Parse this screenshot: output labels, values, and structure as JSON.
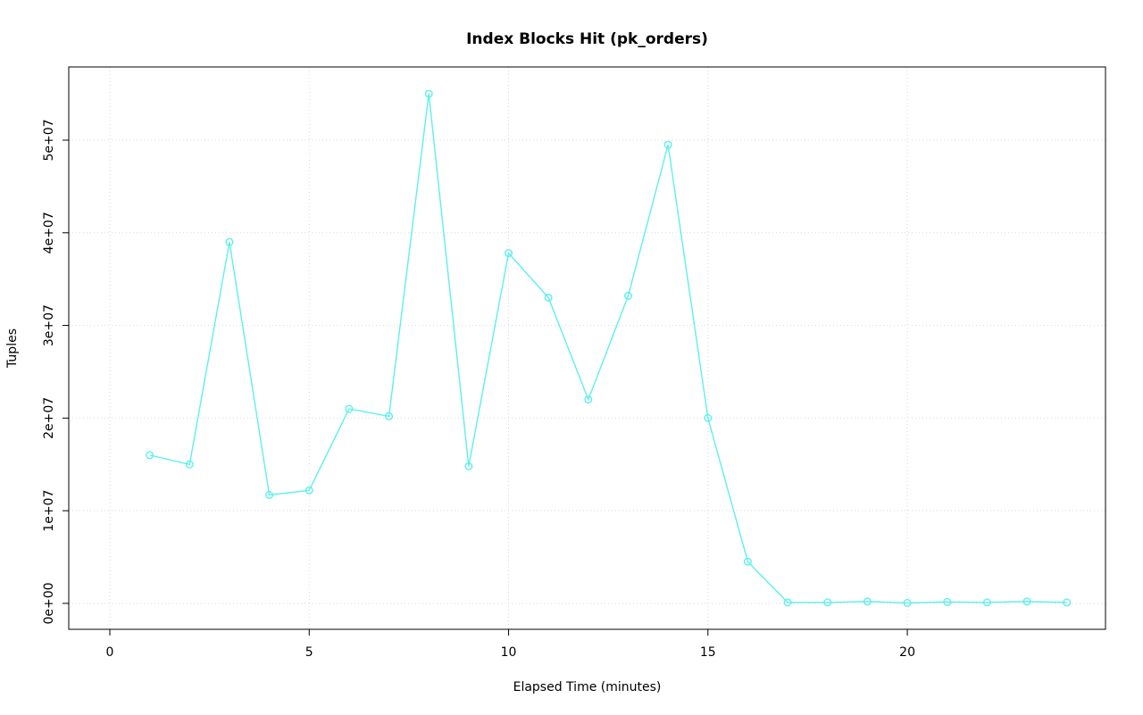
{
  "chart_data": {
    "type": "line",
    "title": "Index Blocks Hit (pk_orders)",
    "xlabel": "Elapsed Time (minutes)",
    "ylabel": "Tuples",
    "x": [
      1,
      2,
      3,
      4,
      5,
      6,
      7,
      8,
      9,
      10,
      11,
      12,
      13,
      14,
      15,
      16,
      17,
      18,
      19,
      20,
      21,
      22,
      23,
      24
    ],
    "y": [
      16000000,
      15000000,
      39000000,
      11700000,
      12200000,
      21000000,
      20200000,
      55000000,
      14800000,
      37800000,
      33000000,
      22000000,
      33200000,
      49500000,
      20000000,
      4500000,
      100000,
      100000,
      200000,
      50000,
      150000,
      100000,
      200000,
      100000
    ],
    "xlim": [
      -1.03,
      24.97
    ],
    "ylim": [
      -2800000,
      57900000
    ],
    "xticks": [
      0,
      5,
      10,
      15,
      20
    ],
    "xtick_labels": [
      "0",
      "5",
      "10",
      "15",
      "20"
    ],
    "yticks": [
      0,
      10000000,
      20000000,
      30000000,
      40000000,
      50000000
    ],
    "ytick_labels": [
      "0e+00",
      "1e+07",
      "2e+07",
      "3e+07",
      "4e+07",
      "5e+07"
    ],
    "grid": true,
    "legend_position": "none",
    "line_color": "#5FEFEC",
    "marker": "open-circle",
    "grid_color": "#d9d9d9",
    "frame_color": "#000000",
    "background_color": "#ffffff"
  }
}
